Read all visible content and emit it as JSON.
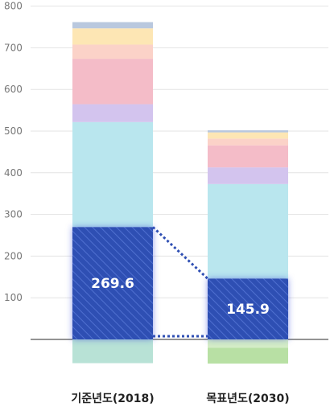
{
  "chart_data": {
    "type": "bar",
    "stacked": true,
    "categories": [
      "기준년도(2018)",
      "목표년도(2030)"
    ],
    "ylim": [
      -50,
      800
    ],
    "yticks": [
      100,
      200,
      300,
      400,
      500,
      600,
      700,
      800
    ],
    "grid": true,
    "series": [
      {
        "color": "#2f4fb3",
        "hatched": true,
        "highlight": true,
        "values": [
          269.6,
          145.9
        ]
      },
      {
        "color": "#b9e6ee",
        "values": [
          252,
          227
        ]
      },
      {
        "color": "#d3c4ee",
        "values": [
          43,
          40
        ]
      },
      {
        "color": "#f4bcc8",
        "values": [
          109,
          53
        ]
      },
      {
        "color": "#fbd2c8",
        "values": [
          34,
          16
        ]
      },
      {
        "color": "#fde6b4",
        "values": [
          39,
          15
        ]
      },
      {
        "color": "#b9c8de",
        "values": [
          15,
          5
        ]
      },
      {
        "color": "#b8e2d6",
        "values": [
          -57,
          0
        ]
      },
      {
        "color": "#d4edc6",
        "values": [
          0,
          -20
        ]
      },
      {
        "color": "#b8e0a4",
        "values": [
          0,
          -38
        ]
      }
    ],
    "labels": [
      "269.6",
      "145.9"
    ],
    "ylabel": "",
    "xlabel": "",
    "title": ""
  }
}
